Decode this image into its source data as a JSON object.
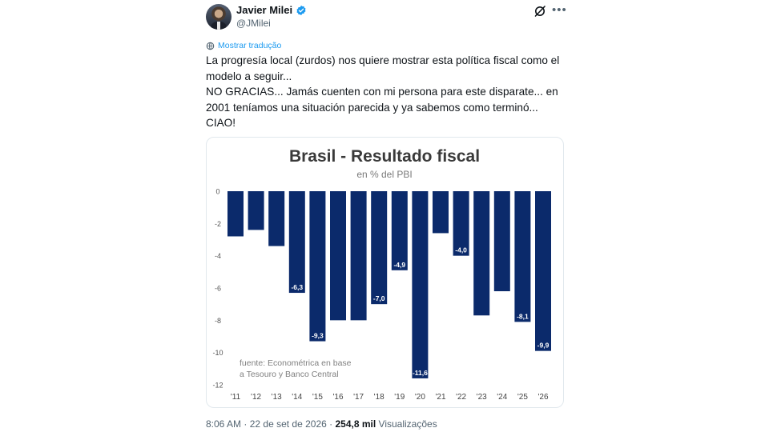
{
  "author": {
    "name": "Javier Milei",
    "handle": "@JMilei"
  },
  "translate_label": "Mostrar tradução",
  "tweet_lines": [
    "La progresía local (zurdos) nos quiere mostrar esta política fiscal como el",
    "modelo a seguir...",
    "NO GRACIAS... Jamás cuenten con mi persona para este disparate... en",
    "2001 teníamos una situación parecida y ya sabemos como terminó...",
    "CIAO!"
  ],
  "meta": {
    "time": "8:06 AM",
    "sep": "·",
    "date": "22 de set de 2026",
    "views": "254,8 mil",
    "views_label": "Visualizações"
  },
  "icons": {
    "verified": "verified-badge-icon",
    "grok": "grok-icon",
    "more": "more-options-icon",
    "translate": "translate-icon"
  },
  "colors": {
    "bar": "#0b2a6b",
    "link": "#1d9bf0",
    "verified": "#1d9bf0"
  },
  "chart_data": {
    "type": "bar",
    "title": "Brasil - Resultado fiscal",
    "subtitle": "en % del PBI",
    "categories": [
      "'11",
      "'12",
      "'13",
      "'14",
      "'15",
      "'16",
      "'17",
      "'18",
      "'19",
      "'20",
      "'21",
      "'22",
      "'23",
      "'24",
      "'25",
      "'26"
    ],
    "values": [
      -2.8,
      -2.4,
      -3.4,
      -6.3,
      -9.3,
      -8.0,
      -8.0,
      -7.0,
      -4.9,
      -11.6,
      -2.6,
      -4.0,
      -7.7,
      -6.2,
      -8.1,
      -9.9
    ],
    "data_labels": [
      "",
      "",
      "",
      "-6,3",
      "-9,3",
      "",
      "",
      "-7,0",
      "-4,9",
      "-11,6",
      "",
      "-4,0",
      "",
      "",
      "-8,1",
      "-9,9"
    ],
    "yticks": [
      0,
      -2,
      -4,
      -6,
      -8,
      -10,
      -12
    ],
    "ylim": [
      -12,
      0
    ],
    "source_note": [
      "fuente: Econométrica en base",
      "a Tesouro y Banco Central"
    ],
    "grid": false
  }
}
